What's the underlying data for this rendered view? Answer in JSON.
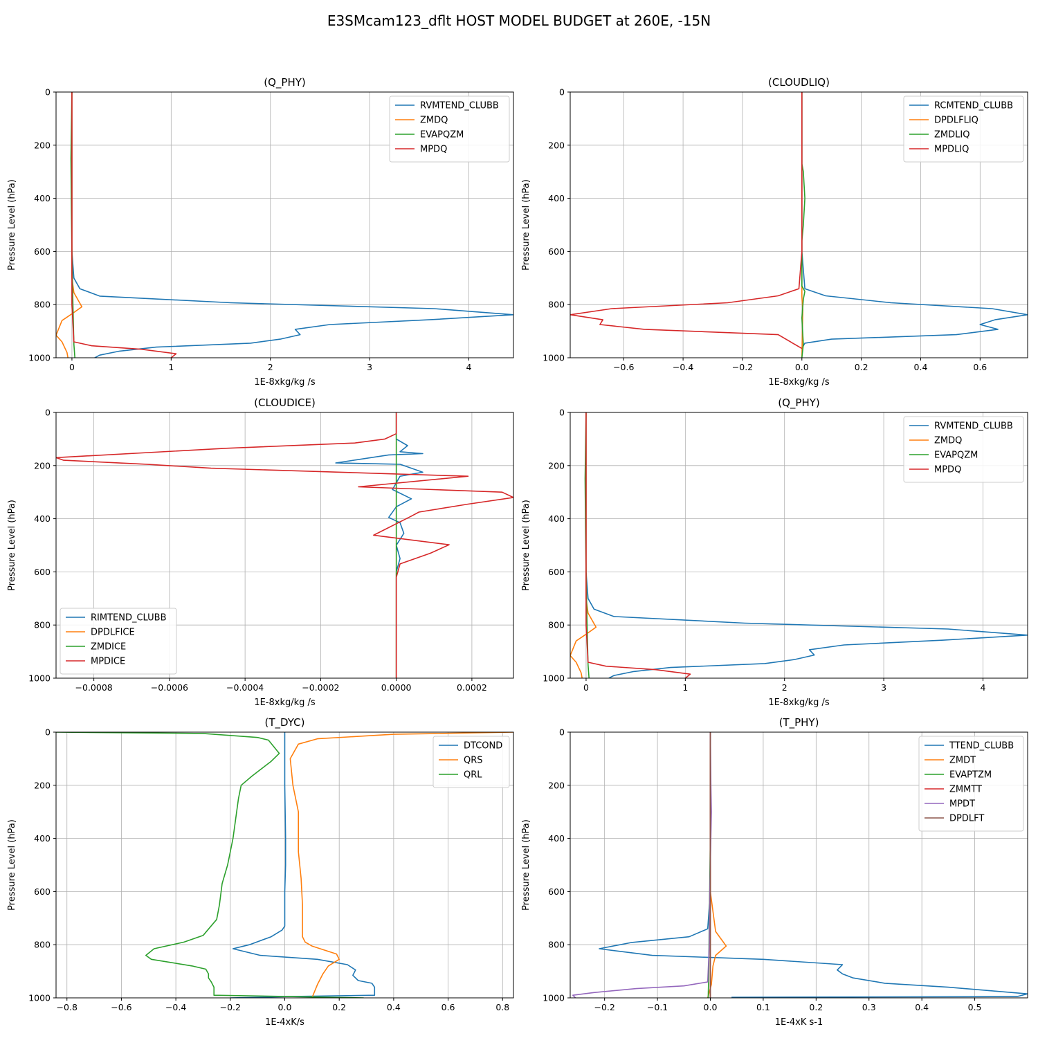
{
  "figure": {
    "title": "E3SMcam123_dflt HOST MODEL BUDGET at 260E, -15N"
  },
  "chart_data": [
    {
      "type": "line",
      "title": "(Q_PHY)",
      "xlabel": "1E-8xkg/kg /s",
      "ylabel": "Pressure Level (hPa)",
      "xlim": [
        -0.16,
        4.45
      ],
      "ylim": [
        1000,
        0
      ],
      "xticks": [
        0,
        1,
        2,
        3,
        4
      ],
      "xtick_labels": [
        "0",
        "1",
        "2",
        "3",
        "4"
      ],
      "yticks": [
        0,
        200,
        400,
        600,
        800,
        1000
      ],
      "ytick_labels": [
        "0",
        "200",
        "400",
        "600",
        "800",
        "1000"
      ],
      "grid": true,
      "legend": "top-right",
      "series": [
        {
          "name": "RVMTEND_CLUBB",
          "color": "#1f77b4",
          "x": [
            0,
            0,
            0,
            0,
            0.02,
            0.08,
            0.28,
            1.6,
            3.65,
            4.45,
            3.6,
            2.6,
            2.25,
            2.3,
            2.1,
            1.8,
            0.85,
            0.48,
            0.28,
            0.23
          ],
          "y": [
            0,
            200,
            400,
            600,
            700,
            740,
            768,
            793,
            815,
            838,
            857,
            875,
            893,
            913,
            930,
            945,
            960,
            975,
            990,
            1000
          ]
        },
        {
          "name": "ZMDQ",
          "color": "#ff7f0e",
          "x": [
            0,
            0,
            0,
            0,
            0,
            0.02,
            0.1,
            0.0,
            -0.1,
            -0.16,
            -0.1,
            -0.05,
            -0.04
          ],
          "y": [
            0,
            200,
            400,
            600,
            700,
            755,
            808,
            835,
            860,
            915,
            940,
            980,
            1000
          ]
        },
        {
          "name": "EVAPQZM",
          "color": "#2ca02c",
          "x": [
            0,
            -0.01,
            -0.005,
            0,
            0.01,
            0.02,
            0.03
          ],
          "y": [
            0,
            250,
            450,
            600,
            800,
            950,
            1000
          ]
        },
        {
          "name": "MPDQ",
          "color": "#d62728",
          "x": [
            0,
            0,
            0,
            0,
            0,
            0.02,
            0.2,
            0.7,
            1.05,
            1.0
          ],
          "y": [
            0,
            200,
            400,
            600,
            800,
            940,
            955,
            968,
            985,
            1000
          ]
        }
      ]
    },
    {
      "type": "line",
      "title": "(CLOUDLIQ)",
      "xlabel": "1E-8xkg/kg /s",
      "ylabel": "Pressure Level (hPa)",
      "xlim": [
        -0.78,
        0.76
      ],
      "ylim": [
        1000,
        0
      ],
      "xticks": [
        -0.6,
        -0.4,
        -0.2,
        0.0,
        0.2,
        0.4,
        0.6
      ],
      "xtick_labels": [
        "−0.6",
        "−0.4",
        "−0.2",
        "0.0",
        "0.2",
        "0.4",
        "0.6"
      ],
      "yticks": [
        0,
        200,
        400,
        600,
        800,
        1000
      ],
      "ytick_labels": [
        "0",
        "200",
        "400",
        "600",
        "800",
        "1000"
      ],
      "grid": true,
      "legend": "top-right",
      "series": [
        {
          "name": "RCMTEND_CLUBB",
          "color": "#1f77b4",
          "x": [
            0,
            0,
            0,
            0,
            0.01,
            0.08,
            0.3,
            0.64,
            0.76,
            0.65,
            0.6,
            0.66,
            0.52,
            0.1,
            0.01,
            0
          ],
          "y": [
            0,
            200,
            400,
            600,
            740,
            767,
            793,
            815,
            838,
            857,
            875,
            893,
            913,
            930,
            945,
            965
          ]
        },
        {
          "name": "DPDLFLIQ",
          "color": "#ff7f0e",
          "x": [
            0,
            0,
            0,
            0,
            0,
            0,
            0.003,
            0
          ],
          "y": [
            0,
            200,
            400,
            600,
            740,
            770,
            820,
            1000
          ]
        },
        {
          "name": "ZMDLIQ",
          "color": "#2ca02c",
          "x": [
            0,
            0,
            0.005,
            0.01,
            0.005,
            0,
            0,
            0.01,
            0.005,
            0,
            0.005,
            0
          ],
          "y": [
            0,
            270,
            300,
            400,
            500,
            560,
            730,
            750,
            780,
            850,
            950,
            1000
          ]
        },
        {
          "name": "MPDLIQ",
          "color": "#d62728",
          "x": [
            0,
            0,
            0,
            0,
            -0.01,
            -0.08,
            -0.25,
            -0.64,
            -0.78,
            -0.67,
            -0.68,
            -0.53,
            -0.08,
            0
          ],
          "y": [
            0,
            200,
            400,
            600,
            740,
            767,
            793,
            815,
            838,
            857,
            875,
            893,
            913,
            965
          ]
        }
      ]
    },
    {
      "type": "line",
      "title": "(CLOUDICE)",
      "xlabel": "1E-8xkg/kg /s",
      "ylabel": "Pressure Level (hPa)",
      "xlim": [
        -0.0009,
        0.00031
      ],
      "ylim": [
        1000,
        0
      ],
      "xticks": [
        -0.0008,
        -0.0006,
        -0.0004,
        -0.0002,
        0,
        0.0002
      ],
      "xtick_labels": [
        "−0.0008",
        "−0.0006",
        "−0.0004",
        "−0.0002",
        "0.0000",
        "0.0002"
      ],
      "yticks": [
        0,
        200,
        400,
        600,
        800,
        1000
      ],
      "ytick_labels": [
        "0",
        "200",
        "400",
        "600",
        "800",
        "1000"
      ],
      "grid": true,
      "legend": "bottom-left",
      "series": [
        {
          "name": "RIMTEND_CLUBB",
          "color": "#1f77b4",
          "x": [
            0,
            0,
            3e-05,
            1e-05,
            7e-05,
            -2e-05,
            -0.00016,
            1e-05,
            7e-05,
            1e-05,
            -1e-05,
            4e-05,
            0,
            -2e-05,
            1e-05,
            2e-05,
            0,
            1e-05,
            0,
            0
          ],
          "y": [
            0,
            100,
            125,
            148,
            155,
            160,
            190,
            195,
            225,
            240,
            290,
            325,
            355,
            395,
            415,
            455,
            500,
            550,
            600,
            1000
          ]
        },
        {
          "name": "DPDLFICE",
          "color": "#ff7f0e",
          "x": [
            0,
            0
          ],
          "y": [
            0,
            1000
          ]
        },
        {
          "name": "ZMDICE",
          "color": "#2ca02c",
          "x": [
            0,
            0
          ],
          "y": [
            0,
            1000
          ]
        },
        {
          "name": "MPDICE",
          "color": "#d62728",
          "x": [
            0,
            0,
            -3e-05,
            -0.00011,
            -0.00045,
            -0.0009,
            -0.00088,
            -0.00066,
            -0.00049,
            0.00019,
            -0.0001,
            0.00028,
            0.00031,
            0.00019,
            6e-05,
            4e-05,
            -6e-05,
            0.00014,
            9e-05,
            1e-05,
            0,
            0
          ],
          "y": [
            0,
            80,
            100,
            115,
            135,
            170,
            180,
            195,
            210,
            240,
            280,
            300,
            320,
            345,
            375,
            390,
            462,
            498,
            530,
            570,
            620,
            1000
          ]
        }
      ]
    },
    {
      "type": "line",
      "title": "(Q_PHY)",
      "xlabel": "1E-8xkg/kg /s",
      "ylabel": "Pressure Level (hPa)",
      "xlim": [
        -0.16,
        4.45
      ],
      "ylim": [
        1000,
        0
      ],
      "xticks": [
        0,
        1,
        2,
        3,
        4
      ],
      "xtick_labels": [
        "0",
        "1",
        "2",
        "3",
        "4"
      ],
      "yticks": [
        0,
        200,
        400,
        600,
        800,
        1000
      ],
      "ytick_labels": [
        "0",
        "200",
        "400",
        "600",
        "800",
        "1000"
      ],
      "grid": true,
      "legend": "top-right",
      "series": [
        {
          "name": "RVMTEND_CLUBB",
          "color": "#1f77b4",
          "x": [
            0,
            0,
            0,
            0,
            0.02,
            0.08,
            0.28,
            1.6,
            3.65,
            4.45,
            3.6,
            2.6,
            2.25,
            2.3,
            2.1,
            1.8,
            0.85,
            0.48,
            0.28,
            0.23
          ],
          "y": [
            0,
            200,
            400,
            600,
            700,
            740,
            768,
            793,
            815,
            838,
            857,
            875,
            893,
            913,
            930,
            945,
            960,
            975,
            990,
            1000
          ]
        },
        {
          "name": "ZMDQ",
          "color": "#ff7f0e",
          "x": [
            0,
            0,
            0,
            0,
            0,
            0.02,
            0.1,
            0.0,
            -0.1,
            -0.16,
            -0.1,
            -0.05,
            -0.04
          ],
          "y": [
            0,
            200,
            400,
            600,
            700,
            755,
            808,
            835,
            860,
            915,
            940,
            980,
            1000
          ]
        },
        {
          "name": "EVAPQZM",
          "color": "#2ca02c",
          "x": [
            0,
            -0.01,
            -0.005,
            0,
            0.01,
            0.02,
            0.03
          ],
          "y": [
            0,
            250,
            450,
            600,
            800,
            950,
            1000
          ]
        },
        {
          "name": "MPDQ",
          "color": "#d62728",
          "x": [
            0,
            0,
            0,
            0,
            0,
            0.02,
            0.2,
            0.7,
            1.05,
            1.0
          ],
          "y": [
            0,
            200,
            400,
            600,
            800,
            940,
            955,
            968,
            985,
            1000
          ]
        }
      ]
    },
    {
      "type": "line",
      "title": "(T_DYC)",
      "xlabel": "1E-4xK/s",
      "ylabel": "Pressure Level (hPa)",
      "xlim": [
        -0.84,
        0.84
      ],
      "ylim": [
        1000,
        0
      ],
      "xticks": [
        -0.8,
        -0.6,
        -0.4,
        -0.2,
        0.0,
        0.2,
        0.4,
        0.6,
        0.8
      ],
      "xtick_labels": [
        "−0.8",
        "−0.6",
        "−0.4",
        "−0.2",
        "0.0",
        "0.2",
        "0.4",
        "0.6",
        "0.8"
      ],
      "yticks": [
        0,
        200,
        400,
        600,
        800,
        1000
      ],
      "ytick_labels": [
        "0",
        "200",
        "400",
        "600",
        "800",
        "1000"
      ],
      "grid": true,
      "legend": "top-right",
      "series": [
        {
          "name": "DTCOND",
          "color": "#1f77b4",
          "x": [
            0,
            0,
            0.003,
            0.003,
            0,
            0,
            -0.01,
            -0.05,
            -0.13,
            -0.19,
            -0.09,
            0.12,
            0.23,
            0.26,
            0.25,
            0.27,
            0.32,
            0.33,
            0.33,
            0.02,
            -0.2
          ],
          "y": [
            0,
            200,
            400,
            500,
            600,
            730,
            745,
            770,
            800,
            815,
            840,
            855,
            875,
            895,
            915,
            935,
            945,
            960,
            990,
            995,
            1000
          ]
        },
        {
          "name": "QRS",
          "color": "#ff7f0e",
          "x": [
            0.84,
            0.4,
            0.12,
            0.05,
            0.02,
            0.03,
            0.05,
            0.05,
            0.06,
            0.065,
            0.065,
            0.075,
            0.1,
            0.19,
            0.2,
            0.16,
            0.14,
            0.12,
            0.1
          ],
          "y": [
            0,
            8,
            25,
            45,
            100,
            200,
            300,
            450,
            550,
            650,
            770,
            790,
            805,
            835,
            855,
            880,
            910,
            950,
            1000
          ]
        },
        {
          "name": "QRL",
          "color": "#2ca02c",
          "x": [
            -0.84,
            -0.3,
            -0.1,
            -0.06,
            -0.02,
            -0.05,
            -0.12,
            -0.16,
            -0.17,
            -0.19,
            -0.21,
            -0.23,
            -0.24,
            -0.25,
            -0.3,
            -0.37,
            -0.48,
            -0.51,
            -0.49,
            -0.34,
            -0.29,
            -0.28,
            -0.28,
            -0.27,
            -0.26,
            -0.26,
            0.29
          ],
          "y": [
            0,
            5,
            20,
            30,
            80,
            110,
            165,
            200,
            250,
            400,
            500,
            570,
            650,
            705,
            765,
            790,
            815,
            840,
            855,
            880,
            892,
            910,
            925,
            940,
            960,
            990,
            1000
          ]
        }
      ]
    },
    {
      "type": "line",
      "title": "(T_PHY)",
      "xlabel": "1E-4xK s-1",
      "ylabel": "Pressure Level (hPa)",
      "xlim": [
        -0.265,
        0.6
      ],
      "ylim": [
        1000,
        0
      ],
      "xticks": [
        -0.2,
        -0.1,
        0.0,
        0.1,
        0.2,
        0.3,
        0.4,
        0.5
      ],
      "xtick_labels": [
        "−0.2",
        "−0.1",
        "0.0",
        "0.1",
        "0.2",
        "0.3",
        "0.4",
        "0.5"
      ],
      "yticks": [
        0,
        200,
        400,
        600,
        800,
        1000
      ],
      "ytick_labels": [
        "0",
        "200",
        "400",
        "600",
        "800",
        "1000"
      ],
      "grid": true,
      "legend": "top-right",
      "series": [
        {
          "name": "TTEND_CLUBB",
          "color": "#1f77b4",
          "x": [
            0,
            0,
            0,
            0,
            -0.005,
            -0.04,
            -0.15,
            -0.21,
            -0.11,
            0.1,
            0.25,
            0.24,
            0.25,
            0.27,
            0.33,
            0.45,
            0.6,
            0.58,
            0.04
          ],
          "y": [
            0,
            200,
            400,
            600,
            740,
            770,
            792,
            815,
            840,
            855,
            875,
            895,
            910,
            925,
            945,
            960,
            985,
            995,
            998
          ]
        },
        {
          "name": "ZMDT",
          "color": "#ff7f0e",
          "x": [
            0,
            0,
            0,
            0,
            0.01,
            0.03,
            0.01,
            0.005,
            0.002,
            -0.005
          ],
          "y": [
            0,
            200,
            400,
            600,
            750,
            805,
            840,
            880,
            950,
            1000
          ]
        },
        {
          "name": "EVAPTZM",
          "color": "#2ca02c",
          "x": [
            0,
            0,
            -0.002,
            -0.003,
            -0.004
          ],
          "y": [
            0,
            400,
            700,
            900,
            1000
          ]
        },
        {
          "name": "ZMMTT",
          "color": "#d62728",
          "x": [
            0,
            0,
            0,
            0
          ],
          "y": [
            0,
            400,
            800,
            1000
          ]
        },
        {
          "name": "MPDT",
          "color": "#9467bd",
          "x": [
            0,
            0.001,
            0.002,
            -0.001,
            -0.002,
            -0.005,
            -0.05,
            -0.14,
            -0.22,
            -0.26,
            -0.255
          ],
          "y": [
            0,
            200,
            300,
            600,
            800,
            940,
            955,
            965,
            980,
            990,
            1000
          ]
        },
        {
          "name": "DPDLFT",
          "color": "#8c564b",
          "x": [
            0,
            0
          ],
          "y": [
            0,
            1000
          ]
        }
      ]
    }
  ]
}
